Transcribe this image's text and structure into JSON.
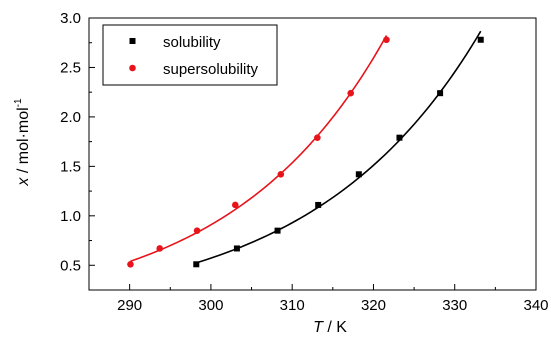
{
  "chart_data": {
    "type": "scatter",
    "title": "",
    "xlabel": {
      "symbol": "T",
      "unit": " / K"
    },
    "ylabel": {
      "symbol": "x",
      "unit": " / mol·mol",
      "unit_sup": "-1"
    },
    "xlim": [
      285,
      340
    ],
    "ylim": [
      0.25,
      3.0
    ],
    "xticks": [
      290,
      300,
      310,
      320,
      330,
      340
    ],
    "yticks": [
      0.5,
      1.0,
      1.5,
      2.0,
      2.5,
      3.0
    ],
    "xtick_labels": [
      "290",
      "300",
      "310",
      "320",
      "330",
      "340"
    ],
    "ytick_labels": [
      "0.5",
      "1.0",
      "1.5",
      "2.0",
      "2.5",
      "3.0"
    ],
    "grid": false,
    "legend_position": "top-left",
    "series": [
      {
        "name": "solubility",
        "marker": "square",
        "color": "#000000",
        "x": [
          298.2,
          303.2,
          308.2,
          313.2,
          318.2,
          323.2,
          328.2,
          333.2
        ],
        "y": [
          0.51,
          0.67,
          0.85,
          1.11,
          1.42,
          1.79,
          2.24,
          2.78
        ]
      },
      {
        "name": "supersolubility",
        "marker": "circle",
        "color": "#e8141b",
        "x": [
          290.1,
          293.7,
          298.3,
          303.0,
          308.6,
          313.1,
          317.2,
          321.6
        ],
        "y": [
          0.51,
          0.67,
          0.85,
          1.11,
          1.42,
          1.79,
          2.24,
          2.78
        ]
      }
    ]
  }
}
